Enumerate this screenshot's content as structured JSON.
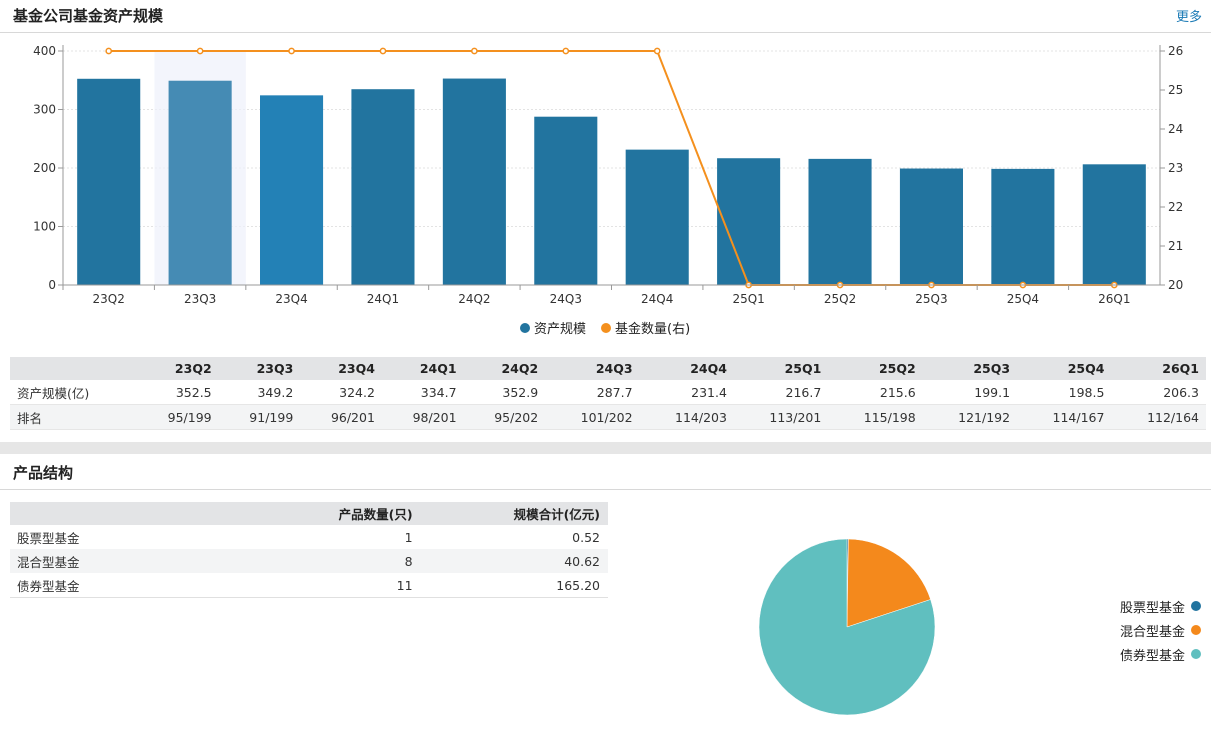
{
  "section1": {
    "title": "基金公司基金资产规模",
    "more_label": "更多"
  },
  "chart_data": [
    {
      "type": "bar+line",
      "categories": [
        "23Q2",
        "23Q3",
        "23Q4",
        "24Q1",
        "24Q2",
        "24Q3",
        "24Q4",
        "25Q1",
        "25Q2",
        "25Q3",
        "25Q4",
        "26Q1"
      ],
      "series": [
        {
          "name": "资产规模",
          "type": "bar",
          "axis": "left",
          "color": "#22749f",
          "values": [
            352.5,
            349.2,
            324.2,
            334.7,
            352.9,
            287.7,
            231.4,
            216.7,
            215.6,
            199.1,
            198.5,
            206.3
          ]
        },
        {
          "name": "基金数量(右)",
          "type": "line",
          "axis": "right",
          "color": "#f4901e",
          "values": [
            26,
            26,
            26,
            26,
            26,
            26,
            26,
            20,
            20,
            20,
            20,
            20
          ]
        }
      ],
      "y_left": {
        "range": [
          0,
          400
        ],
        "ticks": [
          "0",
          "100",
          "200",
          "300",
          "400"
        ]
      },
      "y_right": {
        "range": [
          20,
          26
        ],
        "ticks": [
          "20",
          "21",
          "22",
          "23",
          "24",
          "25",
          "26"
        ]
      },
      "hover_index": 1,
      "legend_position": "bottom-center",
      "grid": true
    },
    {
      "type": "pie",
      "labels": [
        "股票型基金",
        "混合型基金",
        "债券型基金"
      ],
      "values": [
        0.52,
        40.62,
        165.2
      ],
      "colors": [
        "#22749f",
        "#f4891c",
        "#60bfbf"
      ],
      "legend_position": "right"
    }
  ],
  "quarter_table": {
    "headers": [
      "",
      "23Q2",
      "23Q3",
      "23Q4",
      "24Q1",
      "24Q2",
      "24Q3",
      "24Q4",
      "25Q1",
      "25Q2",
      "25Q3",
      "25Q4",
      "26Q1"
    ],
    "rows": [
      {
        "label": "资产规模(亿)",
        "cells": [
          "352.5",
          "349.2",
          "324.2",
          "334.7",
          "352.9",
          "287.7",
          "231.4",
          "216.7",
          "215.6",
          "199.1",
          "198.5",
          "206.3"
        ]
      },
      {
        "label": "排名",
        "cells": [
          "95/199",
          "91/199",
          "96/201",
          "98/201",
          "95/202",
          "101/202",
          "114/203",
          "113/201",
          "115/198",
          "121/192",
          "114/167",
          "112/164"
        ]
      }
    ]
  },
  "section2": {
    "title": "产品结构"
  },
  "product_table": {
    "headers": [
      "",
      "产品数量(只)",
      "规模合计(亿元)"
    ],
    "rows": [
      {
        "label": "股票型基金",
        "count": "1",
        "total": "0.52"
      },
      {
        "label": "混合型基金",
        "count": "8",
        "total": "40.62"
      },
      {
        "label": "债券型基金",
        "count": "11",
        "total": "165.20"
      }
    ]
  }
}
